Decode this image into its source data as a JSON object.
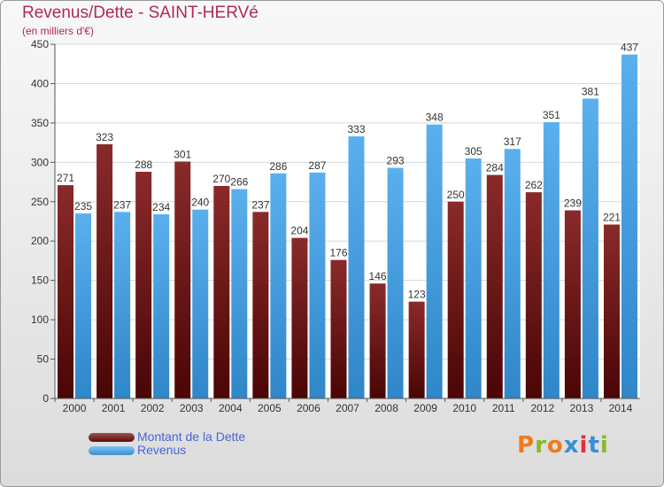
{
  "chart_data": {
    "type": "bar",
    "title": "Revenus/Dette - SAINT-HERVé",
    "subtitle": "(en milliers d'€)",
    "categories": [
      "2000",
      "2001",
      "2002",
      "2003",
      "2004",
      "2005",
      "2006",
      "2007",
      "2008",
      "2009",
      "2010",
      "2011",
      "2012",
      "2013",
      "2014"
    ],
    "series": [
      {
        "name": "Montant de la Dette",
        "color": "#7a1f1f",
        "values": [
          271,
          323,
          288,
          301,
          270,
          237,
          204,
          176,
          146,
          123,
          250,
          284,
          262,
          239,
          221
        ]
      },
      {
        "name": "Revenus",
        "color": "#4aa3e6",
        "values": [
          235,
          237,
          234,
          240,
          266,
          286,
          287,
          333,
          293,
          348,
          305,
          317,
          351,
          381,
          437
        ]
      }
    ],
    "yticks": [
      0,
      50,
      100,
      150,
      200,
      250,
      300,
      350,
      400,
      450
    ],
    "ylim": [
      0,
      450
    ],
    "grid": true,
    "legend": "bottom-left"
  },
  "logo": {
    "text": "Proxiti",
    "colors": [
      "#f07a1e",
      "#8ab82a",
      "#f07a1e",
      "#3a8fd0",
      "#e0303a",
      "#3a8fd0",
      "#8ab82a"
    ]
  }
}
